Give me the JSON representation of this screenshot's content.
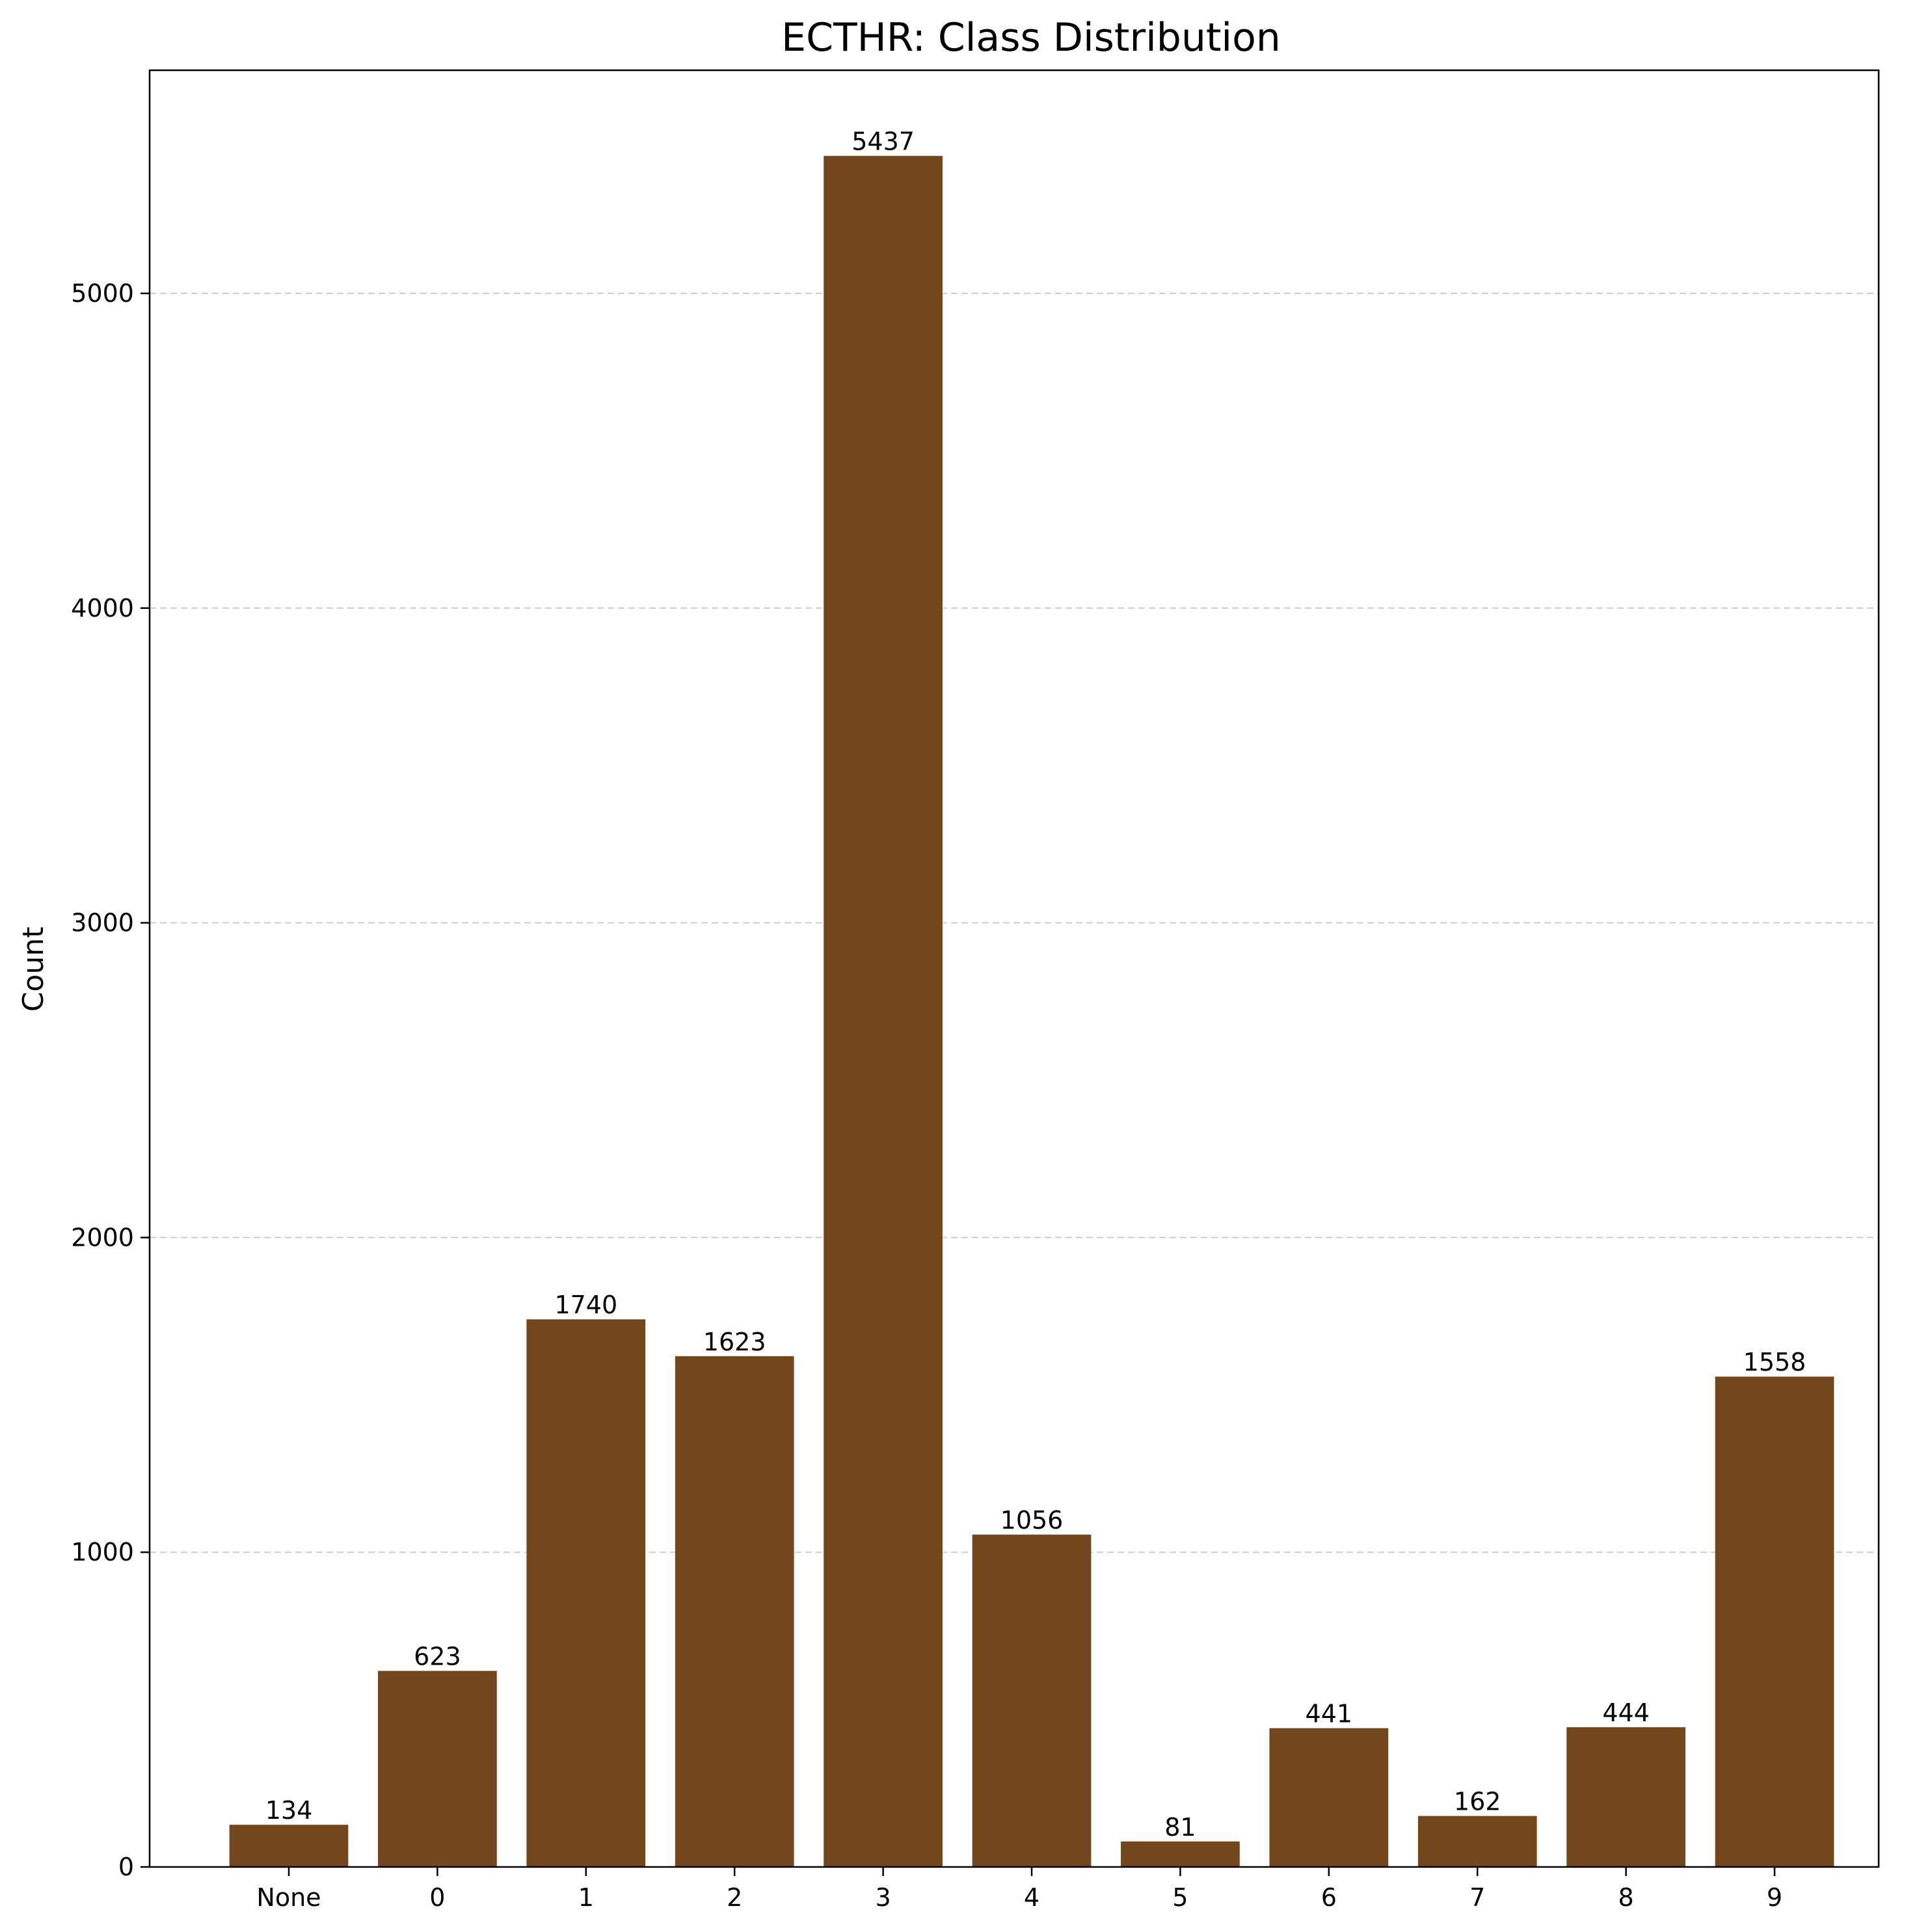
{
  "chart_data": {
    "type": "bar",
    "title": "ECTHR: Class Distribution",
    "xlabel": "",
    "ylabel": "Count",
    "categories": [
      "None",
      "0",
      "1",
      "2",
      "3",
      "4",
      "5",
      "6",
      "7",
      "8",
      "9"
    ],
    "values": [
      134,
      623,
      1740,
      1623,
      5437,
      1056,
      81,
      441,
      162,
      444,
      1558
    ],
    "data_labels": [
      "134",
      "623",
      "1740",
      "1623",
      "5437",
      "1056",
      "81",
      "441",
      "162",
      "444",
      "1558"
    ],
    "yticks": [
      0,
      1000,
      2000,
      3000,
      4000,
      5000
    ],
    "ytick_labels": [
      "0",
      "1000",
      "2000",
      "3000",
      "4000",
      "5000"
    ],
    "ylim": [
      0,
      5709
    ],
    "grid": "y-dashed",
    "legend": "none",
    "bar_color": "#74461b",
    "grid_color": "#cccccc"
  }
}
